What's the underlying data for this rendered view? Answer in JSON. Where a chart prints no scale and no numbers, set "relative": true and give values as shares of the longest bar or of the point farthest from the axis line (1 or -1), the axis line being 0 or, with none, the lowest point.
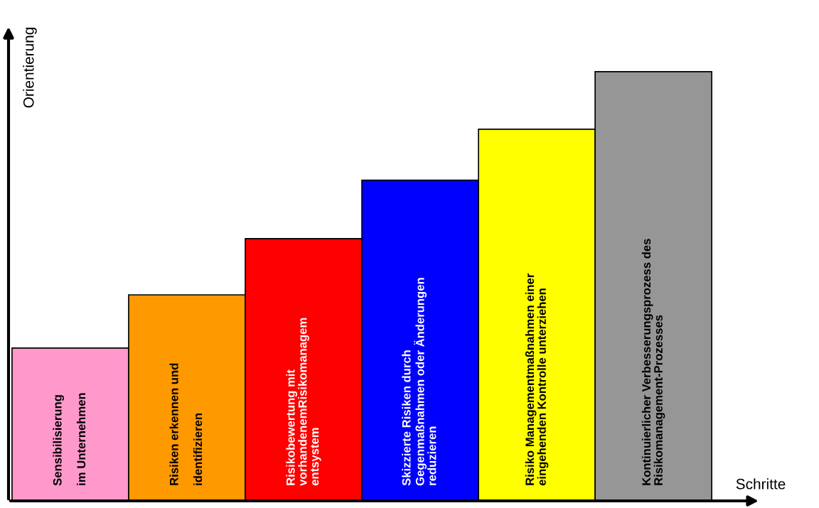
{
  "chart_data": {
    "type": "bar",
    "relative": true,
    "xlabel": "Schritte",
    "ylabel": "Orientierung",
    "categories": [
      "Sensibilisierung\n\nim Unternehmen",
      "Risiken erkennen und\n\nidentifizieren",
      "Risikobewertung mit\nvorhandenemRisikomanagem\nentsystem",
      "Skizzierte Risiken durch\nGegenmaßnahmen oder Änderungen\nreduzieren",
      "Risiko Managementmaßnahmen einer\neingehenden Kontrolle unterziehen",
      "Kontinuierlicher Verbesserungsprozess des\nRisikomanagement-Prozesses"
    ],
    "values": [
      0.356,
      0.48,
      0.611,
      0.747,
      0.866,
      1.0
    ],
    "colors": [
      "#ff99cc",
      "#ff9900",
      "#ff0000",
      "#0000ff",
      "#ffff00",
      "#969696"
    ],
    "legend": false
  }
}
